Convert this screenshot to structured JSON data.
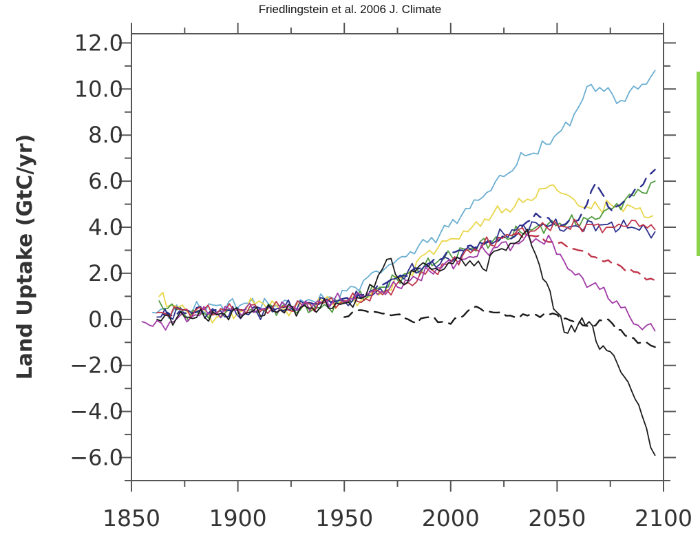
{
  "citation": "Friedlingstein et al. 2006 J. Climate",
  "accent_bar_color": "#8dd34a",
  "chart_data": {
    "type": "line",
    "title": "",
    "xlabel": "",
    "ylabel": "Land Uptake (GtC/yr)",
    "xlim": [
      1850,
      2100
    ],
    "ylim": [
      -7,
      12.4
    ],
    "x_ticks": [
      "1850",
      "1900",
      "1950",
      "2000",
      "2050",
      "2100"
    ],
    "x_tick_values": [
      1850,
      1900,
      1950,
      2000,
      2050,
      2100
    ],
    "y_ticks": [
      "12.0",
      "10.0",
      "8.0",
      "6.0",
      "4.0",
      "2.0",
      "0.0",
      "-2.0",
      "-4.0",
      "-6.0"
    ],
    "y_tick_values": [
      12,
      10,
      8,
      6,
      4,
      2,
      0,
      -2,
      -4,
      -6
    ],
    "grid": false,
    "series": [
      {
        "color": "#6aaed1",
        "dash": false,
        "x": [
          1860,
          1875,
          1890,
          1905,
          1920,
          1935,
          1945,
          1955,
          1965,
          1975,
          1985,
          1995,
          2005,
          2015,
          2025,
          2035,
          2045,
          2052,
          2060,
          2066,
          2072,
          2080,
          2088,
          2096
        ],
        "y": [
          0.3,
          0.4,
          0.6,
          0.7,
          0.6,
          0.8,
          0.9,
          1.4,
          2.1,
          2.6,
          3.2,
          3.7,
          4.5,
          5.3,
          6.2,
          7.1,
          7.6,
          8.2,
          9.2,
          10.2,
          9.9,
          9.5,
          10.0,
          10.8
        ]
      },
      {
        "color": "#e8d64a",
        "dash": false,
        "x": [
          1863,
          1870,
          1880,
          1890,
          1900,
          1910,
          1920,
          1930,
          1940,
          1950,
          1960,
          1970,
          1980,
          1990,
          2000,
          2010,
          2020,
          2030,
          2040,
          2045,
          2050,
          2058,
          2066,
          2075,
          2085,
          2095
        ],
        "y": [
          1.0,
          0.6,
          0.4,
          0.1,
          0.3,
          0.8,
          0.4,
          0.5,
          0.8,
          0.7,
          0.9,
          1.3,
          2.0,
          3.0,
          3.5,
          4.0,
          4.6,
          4.9,
          5.3,
          5.7,
          5.6,
          5.2,
          4.8,
          5.0,
          4.9,
          4.5
        ]
      },
      {
        "color": "#4f9a3e",
        "dash": false,
        "x": [
          1863,
          1875,
          1890,
          1905,
          1920,
          1935,
          1950,
          1965,
          1980,
          1995,
          2010,
          2025,
          2040,
          2055,
          2070,
          2082,
          2090,
          2096
        ],
        "y": [
          0.8,
          0.2,
          0.3,
          0.4,
          0.5,
          0.4,
          0.7,
          1.3,
          2.0,
          2.6,
          3.1,
          3.6,
          4.0,
          4.2,
          4.4,
          5.2,
          5.5,
          6.0
        ]
      },
      {
        "color": "#2b2f8c",
        "dash": true,
        "x": [
          1865,
          1880,
          1895,
          1910,
          1925,
          1940,
          1955,
          1970,
          1985,
          2000,
          2015,
          2030,
          2040,
          2050,
          2060,
          2068,
          2076,
          2085,
          2096
        ],
        "y": [
          0.2,
          0.3,
          0.4,
          0.5,
          0.4,
          0.8,
          0.9,
          1.6,
          2.2,
          2.9,
          3.3,
          3.6,
          4.6,
          4.1,
          4.3,
          5.9,
          4.7,
          5.4,
          6.5
        ]
      },
      {
        "color": "#2b2f8c",
        "dash": false,
        "x": [
          1862,
          1875,
          1890,
          1905,
          1920,
          1935,
          1950,
          1965,
          1980,
          1995,
          2010,
          2025,
          2040,
          2055,
          2070,
          2085,
          2096
        ],
        "y": [
          0.1,
          0.4,
          0.3,
          0.2,
          0.5,
          0.7,
          0.8,
          1.2,
          2.1,
          2.4,
          3.0,
          3.7,
          4.2,
          4.0,
          4.1,
          4.0,
          3.8
        ]
      },
      {
        "color": "#c0344a",
        "dash": false,
        "x": [
          1862,
          1880,
          1900,
          1920,
          1940,
          1960,
          1980,
          2000,
          2015,
          2030,
          2045,
          2060,
          2075,
          2085,
          2096
        ],
        "y": [
          0.3,
          0.4,
          0.4,
          0.5,
          0.7,
          0.9,
          1.6,
          2.5,
          3.2,
          3.7,
          4.0,
          4.1,
          4.0,
          4.3,
          3.9
        ]
      },
      {
        "color": "#c0344a",
        "dash": true,
        "x": [
          2030,
          2040,
          2050,
          2060,
          2070,
          2080,
          2090,
          2096
        ],
        "y": [
          3.7,
          3.6,
          3.3,
          3.0,
          2.6,
          2.3,
          1.9,
          1.7
        ]
      },
      {
        "color": "#a03aa6",
        "dash": false,
        "x": [
          1855,
          1860,
          1870,
          1880,
          1890,
          1900,
          1915,
          1930,
          1945,
          1960,
          1975,
          1990,
          2005,
          2020,
          2030,
          2040,
          2048,
          2055,
          2062,
          2070,
          2078,
          2086,
          2096
        ],
        "y": [
          -0.1,
          -0.3,
          -0.1,
          0.2,
          0.3,
          0.4,
          0.5,
          0.6,
          0.8,
          1.0,
          1.4,
          2.1,
          2.6,
          3.1,
          3.3,
          3.5,
          3.3,
          2.2,
          1.8,
          1.3,
          0.8,
          -0.2,
          -0.5
        ]
      },
      {
        "color": "#1a1a1a",
        "dash": false,
        "x": [
          1862,
          1875,
          1890,
          1905,
          1920,
          1935,
          1950,
          1960,
          1970,
          1978,
          1985,
          1995,
          2005,
          2015,
          2022,
          2030,
          2036,
          2040,
          2045,
          2050,
          2055,
          2060,
          2065,
          2070,
          2075,
          2080,
          2085,
          2090,
          2096
        ],
        "y": [
          0.0,
          0.1,
          0.2,
          0.3,
          0.4,
          0.5,
          0.7,
          1.0,
          2.6,
          1.5,
          2.3,
          2.1,
          2.6,
          2.2,
          3.0,
          3.3,
          3.9,
          2.8,
          1.6,
          0.3,
          -0.6,
          -0.2,
          -0.1,
          -1.3,
          -1.4,
          -2.3,
          -3.1,
          -4.2,
          -5.9
        ]
      },
      {
        "color": "#1a1a1a",
        "dash": true,
        "x": [
          1950,
          1958,
          1966,
          1974,
          1982,
          1990,
          2000,
          2010,
          2020,
          2030,
          2040,
          2050,
          2058,
          2066,
          2074,
          2082,
          2090,
          2096
        ],
        "y": [
          0.1,
          0.4,
          0.3,
          0.2,
          -0.1,
          0.1,
          -0.2,
          0.5,
          0.3,
          0.1,
          0.2,
          0.2,
          -0.1,
          -0.3,
          0.0,
          -0.7,
          -1.0,
          -1.2
        ]
      }
    ]
  }
}
